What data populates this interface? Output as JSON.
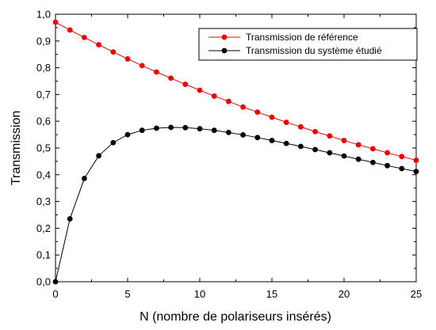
{
  "chart_data": {
    "type": "line",
    "xlabel": "N  (nombre de polariseurs insérés)",
    "ylabel": "Transmission",
    "xlim": [
      0,
      25
    ],
    "ylim": [
      0,
      1.0
    ],
    "x_ticks": [
      0,
      5,
      10,
      15,
      20,
      25
    ],
    "x_tick_labels": [
      "0",
      "5",
      "10",
      "15",
      "20",
      "25"
    ],
    "y_ticks": [
      0,
      0.1,
      0.2,
      0.3,
      0.4,
      0.5,
      0.6,
      0.7,
      0.8,
      0.9,
      1.0
    ],
    "y_tick_labels": [
      "0,0",
      "0,1",
      "0,2",
      "0,3",
      "0,4",
      "0,5",
      "0,6",
      "0,7",
      "0,8",
      "0,9",
      "1,0"
    ],
    "grid": false,
    "legend_position": "top-right",
    "x": [
      0,
      1,
      2,
      3,
      4,
      5,
      6,
      7,
      8,
      9,
      10,
      11,
      12,
      13,
      14,
      15,
      16,
      17,
      18,
      19,
      20,
      21,
      22,
      23,
      24,
      25
    ],
    "series": [
      {
        "name": "Transmission de référence",
        "color": "#ee0000",
        "values": [
          0.97,
          0.941,
          0.913,
          0.886,
          0.859,
          0.833,
          0.808,
          0.784,
          0.761,
          0.738,
          0.716,
          0.694,
          0.674,
          0.653,
          0.634,
          0.615,
          0.596,
          0.579,
          0.561,
          0.545,
          0.528,
          0.512,
          0.497,
          0.482,
          0.468,
          0.454
        ]
      },
      {
        "name": "Transmission du système étudié",
        "color": "#000000",
        "values": [
          0.0,
          0.235,
          0.386,
          0.471,
          0.52,
          0.55,
          0.566,
          0.574,
          0.577,
          0.576,
          0.572,
          0.566,
          0.558,
          0.549,
          0.539,
          0.528,
          0.517,
          0.506,
          0.494,
          0.482,
          0.47,
          0.458,
          0.446,
          0.434,
          0.423,
          0.412
        ]
      }
    ]
  }
}
